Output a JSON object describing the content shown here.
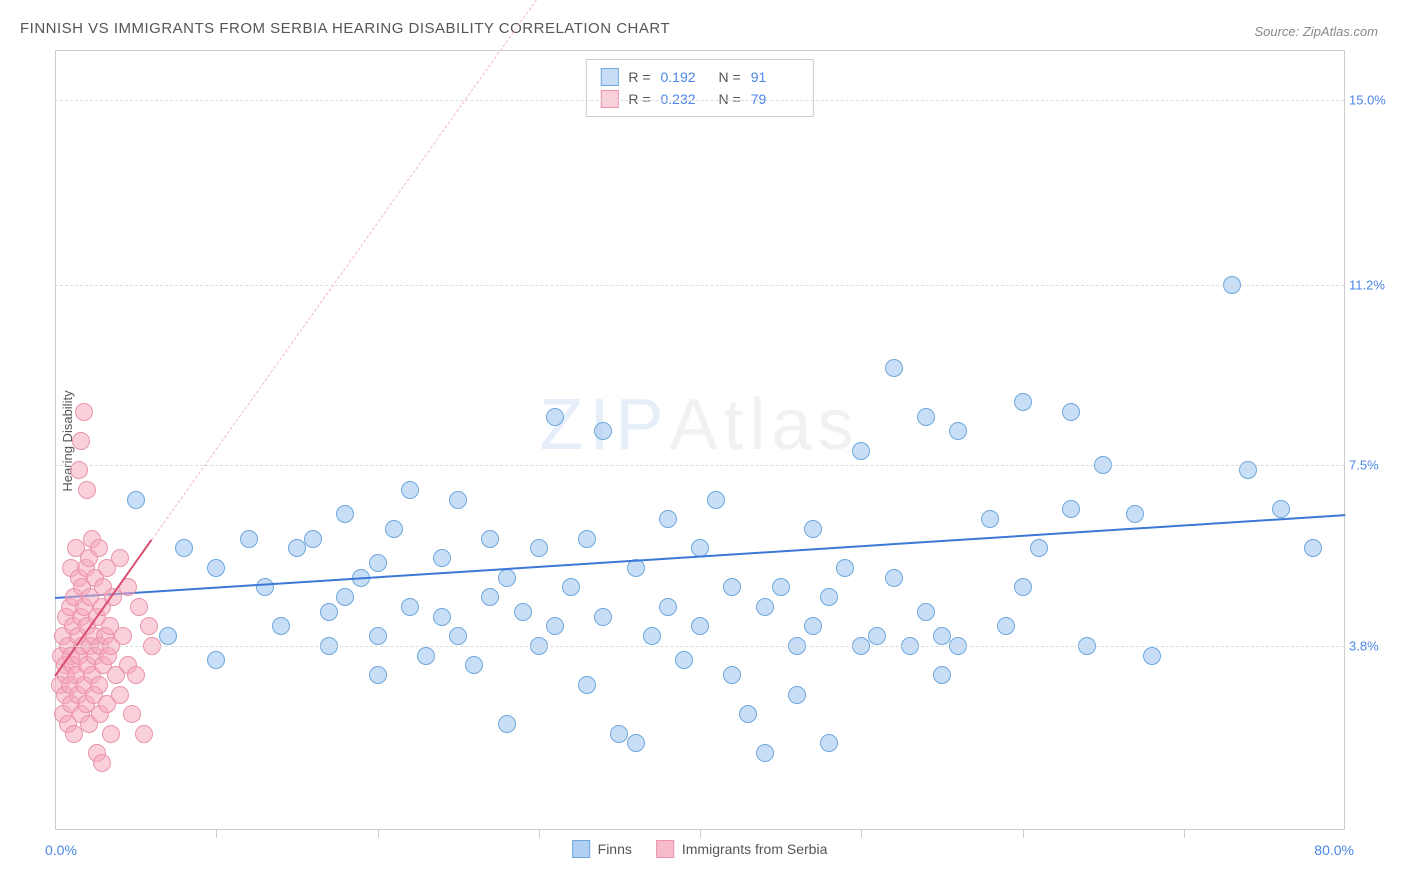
{
  "title": "FINNISH VS IMMIGRANTS FROM SERBIA HEARING DISABILITY CORRELATION CHART",
  "source": "Source: ZipAtlas.com",
  "watermark": {
    "part1": "ZIP",
    "part2": "Atlas"
  },
  "chart": {
    "type": "scatter",
    "y_axis_title": "Hearing Disability",
    "background_color": "#ffffff",
    "grid_color": "#dddddd",
    "axis_color": "#cccccc",
    "xlim": [
      0,
      80
    ],
    "ylim": [
      0,
      16
    ],
    "x_tick_positions": [
      10,
      20,
      30,
      40,
      50,
      60,
      70
    ],
    "x_labels": {
      "min": "0.0%",
      "max": "80.0%",
      "color": "#4a86e8"
    },
    "y_ticks": [
      {
        "value": 3.8,
        "label": "3.8%",
        "color": "#4a86e8"
      },
      {
        "value": 7.5,
        "label": "7.5%",
        "color": "#4a86e8"
      },
      {
        "value": 11.2,
        "label": "11.2%",
        "color": "#4a86e8"
      },
      {
        "value": 15.0,
        "label": "15.0%",
        "color": "#4a86e8"
      }
    ],
    "point_radius": 9,
    "series": [
      {
        "name": "Finns",
        "fill_color": "rgba(155,195,240,0.55)",
        "stroke_color": "#6fa8dc",
        "regression": {
          "x1": 0,
          "y1": 4.8,
          "x2": 80,
          "y2": 6.5,
          "color": "#3b78d8",
          "width": 2,
          "dashed": false
        },
        "extrapolation": null,
        "stats": {
          "r_label": "R =",
          "r_value": "0.192",
          "n_label": "N =",
          "n_value": "91",
          "value_color": "#4a86e8"
        },
        "points": [
          [
            5,
            6.8
          ],
          [
            7,
            4.0
          ],
          [
            8,
            5.8
          ],
          [
            10,
            5.4
          ],
          [
            10,
            3.5
          ],
          [
            12,
            6.0
          ],
          [
            13,
            5.0
          ],
          [
            14,
            4.2
          ],
          [
            15,
            5.8
          ],
          [
            16,
            6.0
          ],
          [
            17,
            4.5
          ],
          [
            17,
            3.8
          ],
          [
            18,
            4.8
          ],
          [
            18,
            6.5
          ],
          [
            19,
            5.2
          ],
          [
            20,
            3.2
          ],
          [
            20,
            4.0
          ],
          [
            20,
            5.5
          ],
          [
            21,
            6.2
          ],
          [
            22,
            7.0
          ],
          [
            22,
            4.6
          ],
          [
            23,
            3.6
          ],
          [
            24,
            5.6
          ],
          [
            24,
            4.4
          ],
          [
            25,
            6.8
          ],
          [
            25,
            4.0
          ],
          [
            26,
            3.4
          ],
          [
            27,
            4.8
          ],
          [
            27,
            6.0
          ],
          [
            28,
            5.2
          ],
          [
            28,
            2.2
          ],
          [
            29,
            4.5
          ],
          [
            30,
            5.8
          ],
          [
            30,
            3.8
          ],
          [
            31,
            8.5
          ],
          [
            31,
            4.2
          ],
          [
            32,
            5.0
          ],
          [
            33,
            6.0
          ],
          [
            33,
            3.0
          ],
          [
            34,
            4.4
          ],
          [
            34,
            8.2
          ],
          [
            35,
            2.0
          ],
          [
            36,
            5.4
          ],
          [
            36,
            1.8
          ],
          [
            37,
            4.0
          ],
          [
            38,
            6.4
          ],
          [
            38,
            4.6
          ],
          [
            39,
            3.5
          ],
          [
            40,
            5.8
          ],
          [
            40,
            4.2
          ],
          [
            41,
            6.8
          ],
          [
            42,
            3.2
          ],
          [
            42,
            5.0
          ],
          [
            43,
            2.4
          ],
          [
            44,
            4.6
          ],
          [
            44,
            1.6
          ],
          [
            45,
            5.0
          ],
          [
            46,
            2.8
          ],
          [
            46,
            3.8
          ],
          [
            47,
            6.2
          ],
          [
            47,
            4.2
          ],
          [
            48,
            1.8
          ],
          [
            48,
            4.8
          ],
          [
            49,
            5.4
          ],
          [
            50,
            7.8
          ],
          [
            50,
            3.8
          ],
          [
            51,
            4.0
          ],
          [
            52,
            5.2
          ],
          [
            52,
            9.5
          ],
          [
            53,
            3.8
          ],
          [
            54,
            4.5
          ],
          [
            54,
            8.5
          ],
          [
            55,
            3.2
          ],
          [
            55,
            4.0
          ],
          [
            56,
            8.2
          ],
          [
            56,
            3.8
          ],
          [
            58,
            6.4
          ],
          [
            59,
            4.2
          ],
          [
            60,
            8.8
          ],
          [
            60,
            5.0
          ],
          [
            61,
            5.8
          ],
          [
            63,
            8.6
          ],
          [
            63,
            6.6
          ],
          [
            64,
            3.8
          ],
          [
            65,
            7.5
          ],
          [
            67,
            6.5
          ],
          [
            68,
            3.6
          ],
          [
            73,
            11.2
          ],
          [
            74,
            7.4
          ],
          [
            76,
            6.6
          ],
          [
            78,
            5.8
          ]
        ]
      },
      {
        "name": "Immigrants from Serbia",
        "fill_color": "rgba(245,170,190,0.55)",
        "stroke_color": "#e994ab",
        "regression": {
          "x1": 0,
          "y1": 3.2,
          "x2": 6,
          "y2": 6.0,
          "color": "#d94f70",
          "width": 2,
          "dashed": false
        },
        "extrapolation": {
          "x1": 6,
          "y1": 6.0,
          "x2": 34,
          "y2": 19.0,
          "color": "#f0b8c8",
          "width": 1,
          "dashed": true
        },
        "stats": {
          "r_label": "R =",
          "r_value": "0.232",
          "n_label": "N =",
          "n_value": "79",
          "value_color": "#4a86e8"
        },
        "points": [
          [
            0.3,
            3.0
          ],
          [
            0.4,
            3.6
          ],
          [
            0.5,
            2.4
          ],
          [
            0.5,
            4.0
          ],
          [
            0.6,
            3.4
          ],
          [
            0.6,
            2.8
          ],
          [
            0.7,
            4.4
          ],
          [
            0.7,
            3.2
          ],
          [
            0.8,
            2.2
          ],
          [
            0.8,
            3.8
          ],
          [
            0.9,
            4.6
          ],
          [
            0.9,
            3.0
          ],
          [
            1.0,
            5.4
          ],
          [
            1.0,
            2.6
          ],
          [
            1.0,
            3.6
          ],
          [
            1.1,
            4.2
          ],
          [
            1.1,
            3.4
          ],
          [
            1.2,
            2.0
          ],
          [
            1.2,
            4.8
          ],
          [
            1.3,
            3.2
          ],
          [
            1.3,
            5.8
          ],
          [
            1.4,
            4.0
          ],
          [
            1.4,
            2.8
          ],
          [
            1.5,
            3.6
          ],
          [
            1.5,
            5.2
          ],
          [
            1.5,
            7.4
          ],
          [
            1.6,
            4.4
          ],
          [
            1.6,
            2.4
          ],
          [
            1.6,
            8.0
          ],
          [
            1.7,
            3.8
          ],
          [
            1.7,
            5.0
          ],
          [
            1.8,
            3.0
          ],
          [
            1.8,
            4.6
          ],
          [
            1.8,
            8.6
          ],
          [
            1.9,
            2.6
          ],
          [
            1.9,
            5.4
          ],
          [
            2.0,
            3.4
          ],
          [
            2.0,
            4.2
          ],
          [
            2.0,
            7.0
          ],
          [
            2.1,
            2.2
          ],
          [
            2.1,
            5.6
          ],
          [
            2.2,
            3.8
          ],
          [
            2.2,
            4.8
          ],
          [
            2.3,
            3.2
          ],
          [
            2.3,
            6.0
          ],
          [
            2.4,
            4.0
          ],
          [
            2.4,
            2.8
          ],
          [
            2.5,
            5.2
          ],
          [
            2.5,
            3.6
          ],
          [
            2.6,
            1.6
          ],
          [
            2.6,
            4.4
          ],
          [
            2.7,
            3.0
          ],
          [
            2.7,
            5.8
          ],
          [
            2.8,
            3.8
          ],
          [
            2.8,
            2.4
          ],
          [
            2.9,
            4.6
          ],
          [
            2.9,
            1.4
          ],
          [
            3.0,
            3.4
          ],
          [
            3.0,
            5.0
          ],
          [
            3.1,
            4.0
          ],
          [
            3.2,
            2.6
          ],
          [
            3.2,
            5.4
          ],
          [
            3.3,
            3.6
          ],
          [
            3.4,
            4.2
          ],
          [
            3.5,
            2.0
          ],
          [
            3.5,
            3.8
          ],
          [
            3.6,
            4.8
          ],
          [
            3.8,
            3.2
          ],
          [
            4.0,
            5.6
          ],
          [
            4.0,
            2.8
          ],
          [
            4.2,
            4.0
          ],
          [
            4.5,
            3.4
          ],
          [
            4.5,
            5.0
          ],
          [
            4.8,
            2.4
          ],
          [
            5.0,
            3.2
          ],
          [
            5.2,
            4.6
          ],
          [
            5.5,
            2.0
          ],
          [
            5.8,
            4.2
          ],
          [
            6.0,
            3.8
          ]
        ]
      }
    ],
    "bottom_legend": [
      {
        "label": "Finns",
        "fill": "rgba(155,195,240,0.8)",
        "stroke": "#6fa8dc"
      },
      {
        "label": "Immigrants from Serbia",
        "fill": "rgba(245,170,190,0.8)",
        "stroke": "#e994ab"
      }
    ]
  }
}
